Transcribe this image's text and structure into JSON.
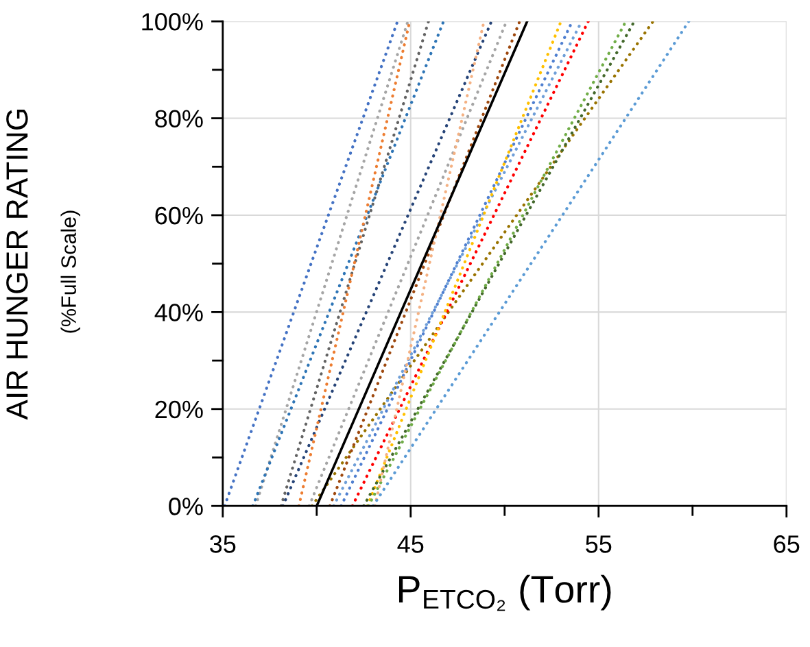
{
  "chart_data": {
    "type": "line",
    "xlabel": "P$_{ETCO₂}$ (Torr)",
    "ylabel": "AIR HUNGER RATING",
    "annotations": [
      "(%Full Scale)"
    ],
    "xlim": [
      35,
      65
    ],
    "xticks": [
      35,
      {
        "value": 40,
        "label": null
      },
      45,
      {
        "value": 50,
        "label": null
      },
      55,
      {
        "value": 60,
        "label": null
      },
      65
    ],
    "ylim": [
      0,
      100
    ],
    "yticks": [
      {
        "value": 0,
        "label": "0%"
      },
      {
        "value": 10,
        "label": null
      },
      {
        "value": 20,
        "label": "20%"
      },
      {
        "value": 30,
        "label": null
      },
      {
        "value": 40,
        "label": "40%"
      },
      {
        "value": 50,
        "label": null
      },
      {
        "value": 60,
        "label": "60%"
      },
      {
        "value": 70,
        "label": null
      },
      {
        "value": 80,
        "label": "80%"
      },
      {
        "value": 90,
        "label": null
      },
      {
        "value": 100,
        "label": "100%"
      }
    ],
    "grid": true,
    "legend": false,
    "marker": "none",
    "line_style": "dotted",
    "series": [
      {
        "color": "#4472c4",
        "x": [
          35.1,
          44.3
        ],
        "values": [
          0,
          100
        ]
      },
      {
        "color": "#a5a5a5",
        "x": [
          36.75,
          44.85
        ],
        "values": [
          0,
          100
        ]
      },
      {
        "color": "#2e75b6",
        "x": [
          36.6,
          46.75
        ],
        "values": [
          0,
          100
        ]
      },
      {
        "color": "#636363",
        "x": [
          38.1,
          45.95
        ],
        "values": [
          0,
          100
        ]
      },
      {
        "color": "#264478",
        "x": [
          38.2,
          49.3
        ],
        "values": [
          0,
          100
        ]
      },
      {
        "color": "#ed7d31",
        "x": [
          39.05,
          44.95
        ],
        "values": [
          0,
          100
        ]
      },
      {
        "color": "#a5a5a5",
        "x": [
          39.6,
          50.1
        ],
        "values": [
          0,
          100
        ]
      },
      {
        "color": "#997300",
        "x": [
          39.75,
          57.9
        ],
        "values": [
          0,
          100
        ]
      },
      {
        "color": "#9e480e",
        "x": [
          40.7,
          50.8
        ],
        "values": [
          0,
          100
        ]
      },
      {
        "color": "#6f9fd8",
        "x": [
          40.9,
          54.1
        ],
        "values": [
          0,
          100
        ]
      },
      {
        "color": "#4f7fd0",
        "x": [
          41.3,
          53.6
        ],
        "values": [
          0,
          100
        ]
      },
      {
        "color": "#ff0000",
        "x": [
          41.9,
          54.45
        ],
        "values": [
          0,
          100
        ]
      },
      {
        "color": "#ffc000",
        "x": [
          42.7,
          53.0
        ],
        "values": [
          0,
          100
        ]
      },
      {
        "color": "#43682b",
        "x": [
          42.5,
          56.9
        ],
        "values": [
          0,
          100
        ]
      },
      {
        "color": "#70ad47",
        "x": [
          42.75,
          56.45
        ],
        "values": [
          0,
          100
        ]
      },
      {
        "color": "#f4b183",
        "x": [
          43.1,
          48.9
        ],
        "values": [
          0,
          100
        ]
      },
      {
        "color": "#5b9bd5",
        "x": [
          43.0,
          59.8
        ],
        "values": [
          0,
          100
        ]
      },
      {
        "color": "#000000",
        "line_style": "solid",
        "x": [
          40.0,
          51.2
        ],
        "values": [
          0,
          100
        ]
      }
    ]
  }
}
